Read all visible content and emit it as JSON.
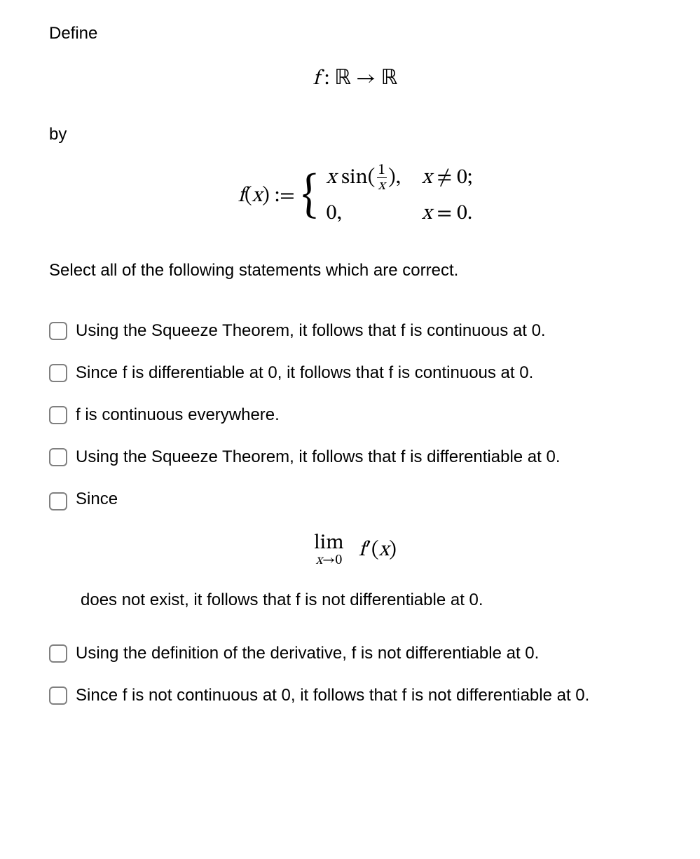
{
  "intro": {
    "define": "Define",
    "by": "by"
  },
  "function_map": {
    "text": "f : ℝ → ℝ",
    "f": "f",
    "colon": ":",
    "domain": "ℝ",
    "arrow": "→",
    "codomain": "ℝ"
  },
  "function_def": {
    "lhs_f": "f",
    "lhs_open": "(",
    "lhs_x": "x",
    "lhs_close": ")",
    "assign": " := ",
    "case1_expr_x": "x",
    "case1_expr_sin": " sin",
    "case1_expr_open": "(",
    "case1_frac_num": "1",
    "case1_frac_den": "x",
    "case1_expr_close": "),",
    "case1_cond": "x ≠ 0;",
    "case2_expr": "0,",
    "case2_cond": "x = 0."
  },
  "instruction": "Select all of the following statements which are correct.",
  "options": [
    {
      "label": "Using the Squeeze Theorem, it follows that f is continuous at 0."
    },
    {
      "label": "Since f is differentiable at 0, it follows that f is continuous at 0."
    },
    {
      "label": "f is continuous everywhere."
    },
    {
      "label": "Using the Squeeze Theorem, it follows that f is differentiable at 0."
    }
  ],
  "option5": {
    "lead": "Since",
    "lim_top": "lim",
    "lim_bot": "x→0",
    "fprime_f": "f",
    "fprime_prime": "′",
    "fprime_open": "(",
    "fprime_x": "x",
    "fprime_close": ")",
    "tail": "does not exist, it follows that f is not differentiable at 0."
  },
  "options_after": [
    {
      "label": "Using the definition of the derivative, f is not differentiable at 0."
    },
    {
      "label": "Since f is not continuous at 0, it follows that f is not differentiable at 0."
    }
  ],
  "style": {
    "text_color": "#000000",
    "background": "#ffffff",
    "body_font_size": 24,
    "math_font_size": 30,
    "checkbox_border": "#808080",
    "checkbox_radius": 6
  }
}
